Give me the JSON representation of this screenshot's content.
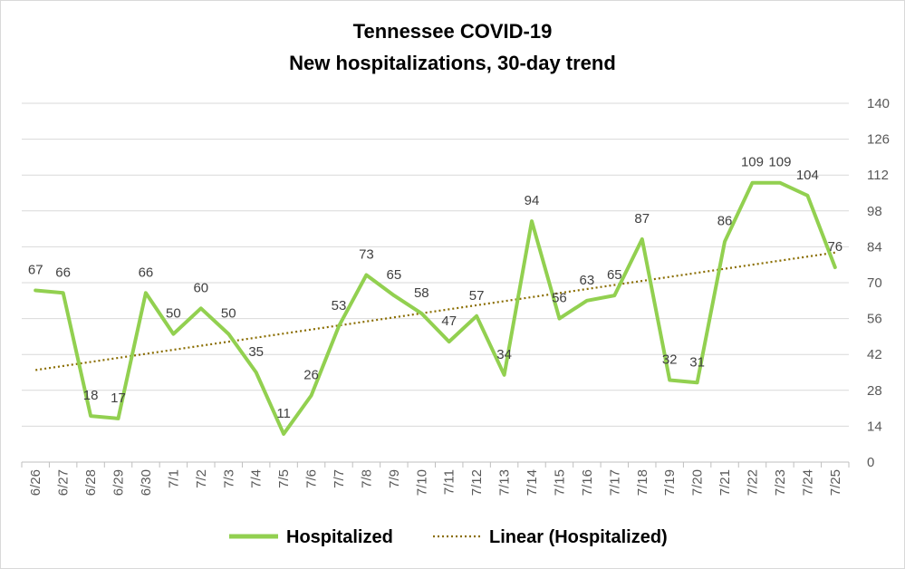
{
  "chart_data": {
    "type": "line",
    "title_line1": "Tennessee COVID-19",
    "title_line2": "New hospitalizations, 30-day trend",
    "categories": [
      "6/26",
      "6/27",
      "6/28",
      "6/29",
      "6/30",
      "7/1",
      "7/2",
      "7/3",
      "7/4",
      "7/5",
      "7/6",
      "7/7",
      "7/8",
      "7/9",
      "7/10",
      "7/11",
      "7/12",
      "7/13",
      "7/14",
      "7/15",
      "7/16",
      "7/17",
      "7/18",
      "7/19",
      "7/20",
      "7/21",
      "7/22",
      "7/23",
      "7/24",
      "7/25"
    ],
    "series": [
      {
        "name": "Hospitalized",
        "color": "#92d050",
        "values": [
          67,
          66,
          18,
          17,
          66,
          50,
          60,
          50,
          35,
          11,
          26,
          53,
          73,
          65,
          58,
          47,
          57,
          34,
          94,
          56,
          63,
          65,
          87,
          32,
          31,
          86,
          109,
          109,
          104,
          76
        ]
      }
    ],
    "trendline": {
      "name": "Linear (Hospitalized)",
      "color": "#8a6d00",
      "style": "dotted"
    },
    "ylim": [
      0,
      140
    ],
    "yticks": [
      0,
      14,
      28,
      42,
      56,
      70,
      84,
      98,
      112,
      126,
      140
    ],
    "y_axis_side": "right",
    "grid": true,
    "legend_position": "bottom"
  }
}
